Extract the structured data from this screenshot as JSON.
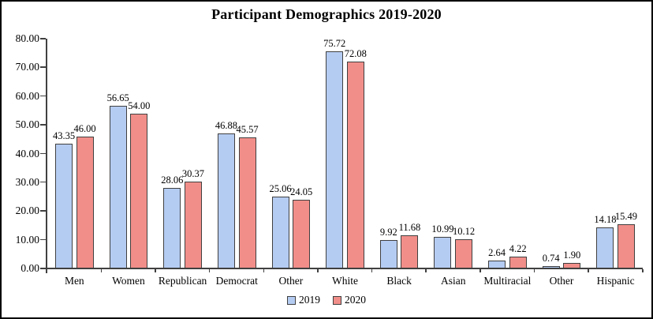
{
  "frame": {
    "background": "#ffffff",
    "border_color": "#000000"
  },
  "chart_data": {
    "type": "bar",
    "title": "Participant Demographics 2019-2020",
    "categories": [
      "Men",
      "Women",
      "Republican",
      "Democrat",
      "Other",
      "White",
      "Black",
      "Asian",
      "Multiracial",
      "Other",
      "Hispanic"
    ],
    "series": [
      {
        "name": "2019",
        "color": "#b5ccf2",
        "values": [
          43.35,
          56.65,
          28.06,
          46.88,
          25.06,
          75.72,
          9.92,
          10.99,
          2.64,
          0.74,
          14.18
        ]
      },
      {
        "name": "2020",
        "color": "#f18e89",
        "values": [
          46.0,
          54.0,
          30.37,
          45.57,
          24.05,
          72.08,
          11.68,
          10.12,
          4.22,
          1.9,
          15.49
        ]
      }
    ],
    "xlabel": "",
    "ylabel": "",
    "ylim": [
      0,
      80
    ],
    "ytick_step": 10,
    "ytick_labels": [
      "0.00",
      "10.00",
      "20.00",
      "30.00",
      "40.00",
      "50.00",
      "60.00",
      "70.00",
      "80.00"
    ],
    "value_label_decimals": 2,
    "grid": "off",
    "legend_position": "bottom",
    "bar_border_color": "#404040",
    "axis_color": "#404040"
  }
}
